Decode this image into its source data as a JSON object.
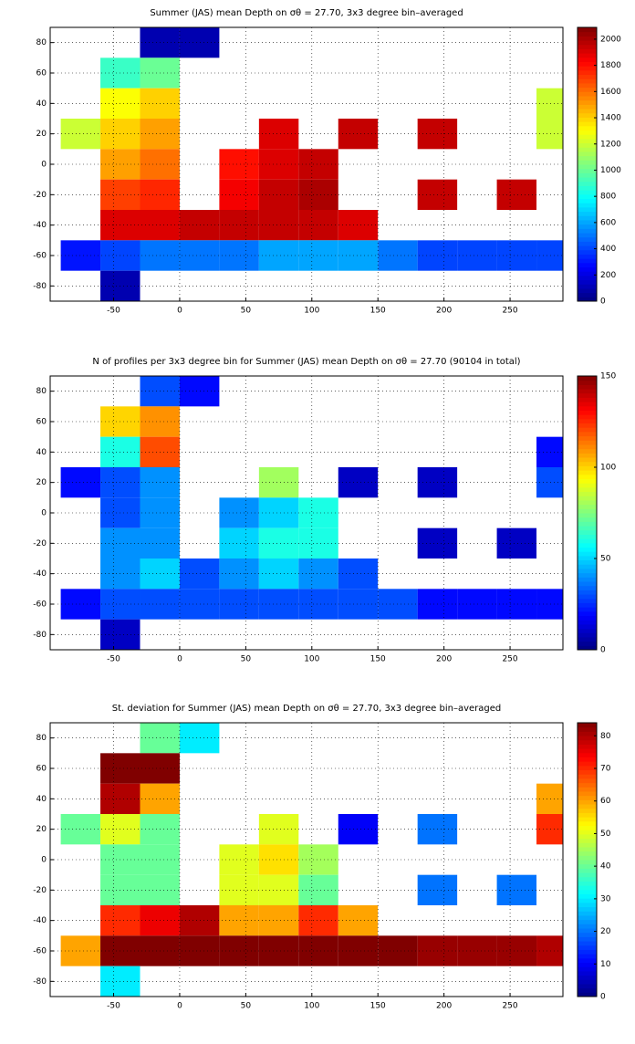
{
  "chart_data": [
    {
      "type": "heatmap",
      "title": "Summer (JAS) mean Depth on σθ = 27.70, 3x3 degree bin–averaged",
      "colormap": "jet",
      "grid": true,
      "xlim": [
        -98,
        290
      ],
      "ylim": [
        -90,
        90
      ],
      "xticks": [
        -50,
        0,
        50,
        100,
        150,
        200,
        250
      ],
      "yticks": [
        -80,
        -60,
        -40,
        -20,
        0,
        20,
        40,
        60,
        80
      ],
      "clim": [
        0,
        2090
      ],
      "cticks": [
        0,
        200,
        400,
        600,
        800,
        1000,
        1200,
        1400,
        1600,
        1800,
        2000
      ],
      "x": [
        -75,
        -45,
        -15,
        15,
        45,
        75,
        105,
        135,
        165,
        195,
        225,
        255,
        285
      ],
      "y": [
        80,
        60,
        40,
        20,
        0,
        -20,
        -40,
        -60,
        -80
      ],
      "values": [
        [
          null,
          null,
          100,
          100,
          null,
          null,
          null,
          null,
          null,
          null,
          null,
          null,
          null
        ],
        [
          null,
          900,
          1000,
          null,
          null,
          null,
          null,
          null,
          null,
          null,
          null,
          null,
          null
        ],
        [
          null,
          1300,
          1400,
          null,
          null,
          null,
          null,
          null,
          null,
          null,
          null,
          null,
          1200
        ],
        [
          1200,
          1400,
          1500,
          null,
          null,
          1900,
          null,
          1950,
          null,
          1950,
          null,
          null,
          1200
        ],
        [
          null,
          1500,
          1600,
          null,
          1800,
          1900,
          1950,
          null,
          null,
          null,
          null,
          null,
          null
        ],
        [
          null,
          1700,
          1750,
          null,
          1850,
          1950,
          2000,
          null,
          null,
          1950,
          null,
          1950,
          null
        ],
        [
          null,
          1900,
          1900,
          1950,
          1950,
          1950,
          1950,
          1900,
          null,
          null,
          null,
          null,
          null
        ],
        [
          300,
          400,
          500,
          500,
          500,
          600,
          600,
          600,
          500,
          400,
          400,
          400,
          400
        ],
        [
          null,
          100,
          null,
          null,
          null,
          null,
          null,
          null,
          null,
          null,
          null,
          null,
          null
        ]
      ]
    },
    {
      "type": "heatmap",
      "title": "N of profiles per 3x3 degree bin for Summer (JAS) mean Depth on σθ = 27.70 (90104 in total)",
      "colormap": "jet",
      "grid": true,
      "xlim": [
        -98,
        290
      ],
      "ylim": [
        -90,
        90
      ],
      "xticks": [
        -50,
        0,
        50,
        100,
        150,
        200,
        250
      ],
      "yticks": [
        -80,
        -60,
        -40,
        -20,
        0,
        20,
        40,
        60,
        80
      ],
      "clim": [
        0,
        150
      ],
      "cticks": [
        0,
        50,
        100,
        150
      ],
      "x": [
        -75,
        -45,
        -15,
        15,
        45,
        75,
        105,
        135,
        165,
        195,
        225,
        255,
        285
      ],
      "y": [
        80,
        60,
        40,
        20,
        0,
        -20,
        -40,
        -60,
        -80
      ],
      "values": [
        [
          null,
          null,
          30,
          20,
          null,
          null,
          null,
          null,
          null,
          null,
          null,
          null,
          null
        ],
        [
          null,
          100,
          110,
          null,
          null,
          null,
          null,
          null,
          null,
          null,
          null,
          null,
          null
        ],
        [
          null,
          60,
          120,
          null,
          null,
          null,
          null,
          null,
          null,
          null,
          null,
          null,
          20
        ],
        [
          20,
          30,
          40,
          null,
          null,
          80,
          null,
          10,
          null,
          10,
          null,
          null,
          30
        ],
        [
          null,
          30,
          40,
          null,
          40,
          50,
          60,
          null,
          null,
          null,
          null,
          null,
          null
        ],
        [
          null,
          40,
          40,
          null,
          50,
          60,
          60,
          null,
          null,
          10,
          null,
          10,
          null
        ],
        [
          null,
          40,
          50,
          30,
          40,
          50,
          40,
          30,
          null,
          null,
          null,
          null,
          null
        ],
        [
          20,
          30,
          30,
          30,
          30,
          30,
          30,
          30,
          30,
          20,
          20,
          20,
          20
        ],
        [
          null,
          10,
          null,
          null,
          null,
          null,
          null,
          null,
          null,
          null,
          null,
          null,
          null
        ]
      ]
    },
    {
      "type": "heatmap",
      "title": "St. deviation for Summer (JAS) mean Depth on σθ = 27.70, 3x3 degree bin–averaged",
      "colormap": "jet",
      "grid": true,
      "xlim": [
        -98,
        290
      ],
      "ylim": [
        -90,
        90
      ],
      "xticks": [
        -50,
        0,
        50,
        100,
        150,
        200,
        250
      ],
      "yticks": [
        -80,
        -60,
        -40,
        -20,
        0,
        20,
        40,
        60,
        80
      ],
      "clim": [
        0,
        84
      ],
      "cticks": [
        0,
        10,
        20,
        30,
        40,
        50,
        60,
        70,
        80
      ],
      "x": [
        -75,
        -45,
        -15,
        15,
        45,
        75,
        105,
        135,
        165,
        195,
        225,
        255,
        285
      ],
      "y": [
        80,
        60,
        40,
        20,
        0,
        -20,
        -40,
        -60,
        -80
      ],
      "values": [
        [
          null,
          null,
          40,
          30,
          null,
          null,
          null,
          null,
          null,
          null,
          null,
          null,
          null
        ],
        [
          null,
          84,
          84,
          null,
          null,
          null,
          null,
          null,
          null,
          null,
          null,
          null,
          null
        ],
        [
          null,
          80,
          60,
          null,
          null,
          null,
          null,
          null,
          null,
          null,
          null,
          null,
          60
        ],
        [
          40,
          50,
          40,
          null,
          null,
          50,
          null,
          10,
          null,
          20,
          null,
          null,
          70
        ],
        [
          null,
          40,
          40,
          null,
          50,
          55,
          45,
          null,
          null,
          null,
          null,
          null,
          null
        ],
        [
          null,
          40,
          40,
          null,
          50,
          50,
          40,
          null,
          null,
          20,
          null,
          20,
          null
        ],
        [
          null,
          70,
          75,
          80,
          60,
          60,
          70,
          60,
          null,
          null,
          null,
          null,
          null
        ],
        [
          60,
          84,
          84,
          84,
          84,
          84,
          84,
          84,
          84,
          82,
          82,
          82,
          80
        ],
        [
          null,
          30,
          null,
          null,
          null,
          null,
          null,
          null,
          null,
          null,
          null,
          null,
          null
        ]
      ]
    }
  ]
}
